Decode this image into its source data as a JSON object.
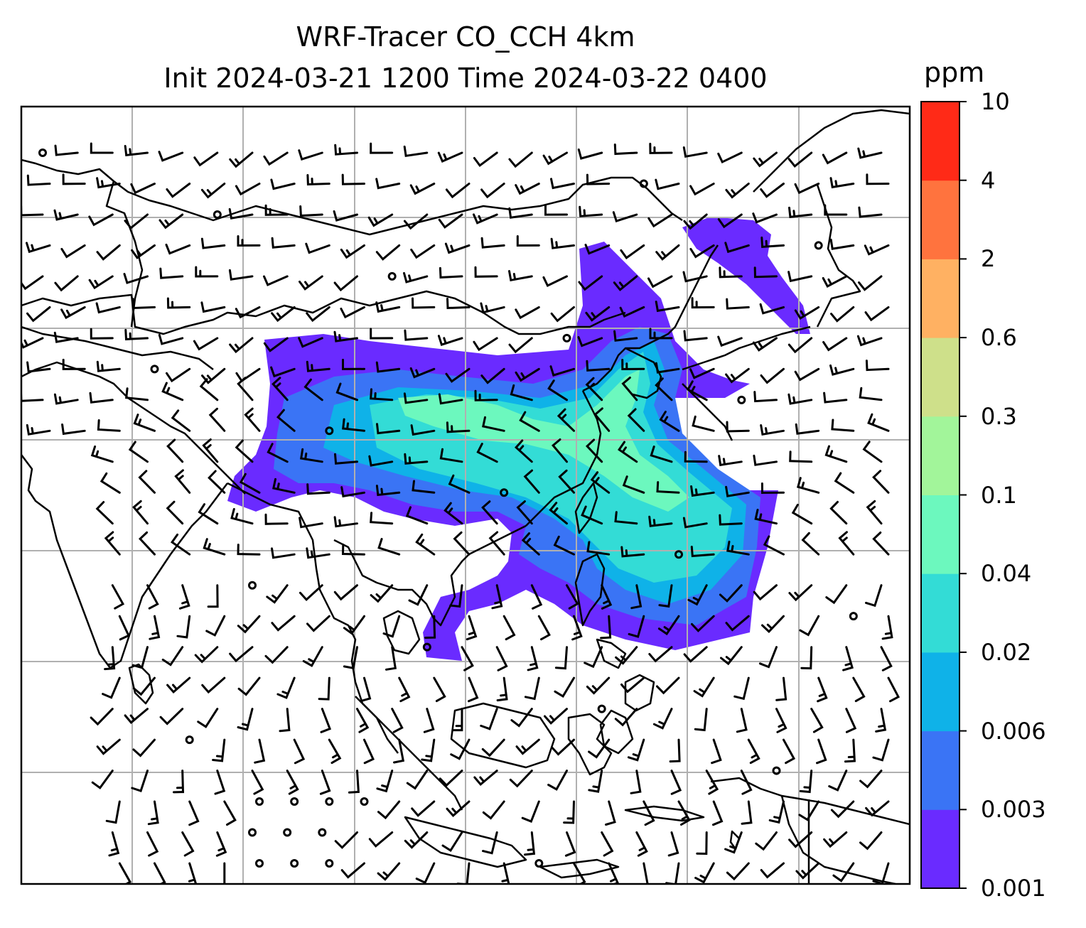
{
  "title": {
    "line1": "WRF-Tracer CO_CCH 4km",
    "line2": "Init 2024-03-21 1200 Time 2024-03-22 0400"
  },
  "colorbar": {
    "unit": "ppm",
    "levels": [
      "0.001",
      "0.003",
      "0.006",
      "0.02",
      "0.04",
      "0.1",
      "0.3",
      "0.6",
      "2",
      "4",
      "10"
    ],
    "colors": [
      "#6a2bff",
      "#3a74f5",
      "#0fb2e8",
      "#33dcd6",
      "#6cf8be",
      "#a2f59a",
      "#cee08a",
      "#ffb162",
      "#ff733e",
      "#ff2a17"
    ]
  },
  "map": {
    "grid": true,
    "grid_color": "#b0b0b0",
    "coastline_color": "#000000",
    "wind_barb_color": "#000000"
  }
}
